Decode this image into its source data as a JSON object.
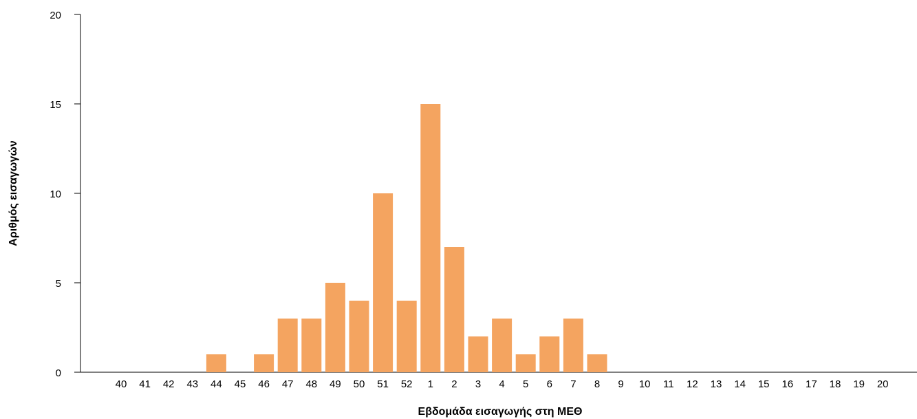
{
  "chart_data": {
    "type": "bar",
    "xlabel": "Εβδομάδα εισαγωγής στη ΜΕΘ",
    "ylabel": "Αριθμός εισαγωγών",
    "categories": [
      "40",
      "41",
      "42",
      "43",
      "44",
      "45",
      "46",
      "47",
      "48",
      "49",
      "50",
      "51",
      "52",
      "1",
      "2",
      "3",
      "4",
      "5",
      "6",
      "7",
      "8",
      "9",
      "10",
      "11",
      "12",
      "13",
      "14",
      "15",
      "16",
      "17",
      "18",
      "19",
      "20"
    ],
    "values": [
      0,
      0,
      0,
      0,
      1,
      0,
      1,
      3,
      3,
      5,
      4,
      10,
      4,
      15,
      7,
      2,
      3,
      1,
      2,
      3,
      1,
      0,
      0,
      0,
      0,
      0,
      0,
      0,
      0,
      0,
      0,
      0,
      0
    ],
    "ylim": [
      0,
      20
    ],
    "yticks": [
      0,
      5,
      10,
      15,
      20
    ],
    "bar_color": "#f4a460",
    "grid": false,
    "legend": "none"
  }
}
